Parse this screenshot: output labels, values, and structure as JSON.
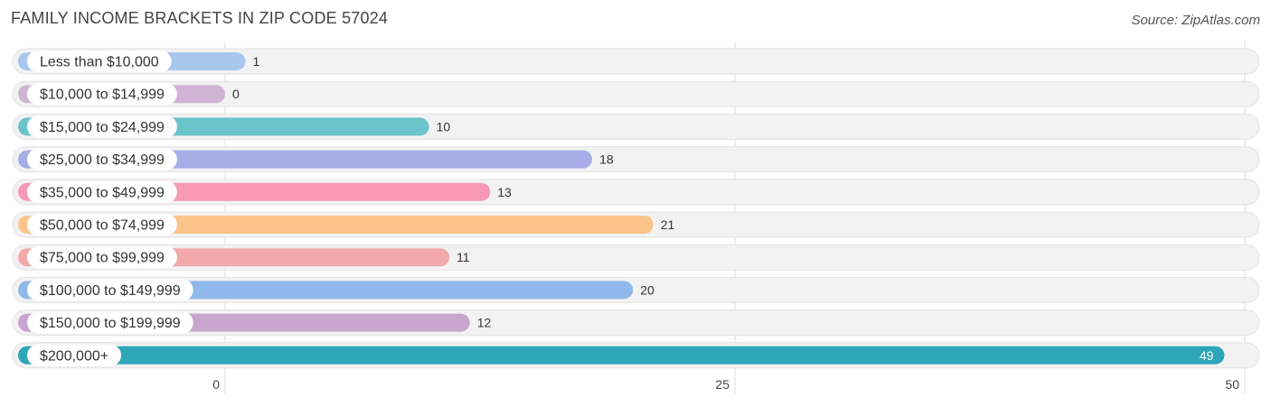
{
  "header": {
    "title": "FAMILY INCOME BRACKETS IN ZIP CODE 57024",
    "source": "Source: ZipAtlas.com"
  },
  "chart_data": {
    "type": "bar",
    "orientation": "horizontal",
    "title": "FAMILY INCOME BRACKETS IN ZIP CODE 57024",
    "categories": [
      "Less than $10,000",
      "$10,000 to $14,999",
      "$15,000 to $24,999",
      "$25,000 to $34,999",
      "$35,000 to $49,999",
      "$50,000 to $74,999",
      "$75,000 to $99,999",
      "$100,000 to $149,999",
      "$150,000 to $199,999",
      "$200,000+"
    ],
    "values": [
      1,
      0,
      10,
      18,
      13,
      21,
      11,
      20,
      12,
      49
    ],
    "colors": [
      "#a9c7ee",
      "#d1b3d6",
      "#6cc4cb",
      "#a7ade6",
      "#f799b7",
      "#fbc48b",
      "#f1a9a9",
      "#91b8ea",
      "#c8a6cf",
      "#2ea6b9"
    ],
    "xlim": [
      0,
      50
    ],
    "xticks": [
      0,
      25,
      50
    ],
    "grid": true,
    "xlabel": "",
    "ylabel": ""
  }
}
